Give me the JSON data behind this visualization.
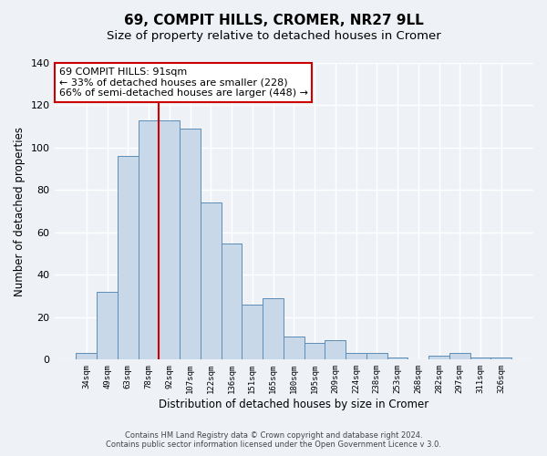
{
  "title": "69, COMPIT HILLS, CROMER, NR27 9LL",
  "subtitle": "Size of property relative to detached houses in Cromer",
  "xlabel": "Distribution of detached houses by size in Cromer",
  "ylabel": "Number of detached properties",
  "bar_labels": [
    "34sqm",
    "49sqm",
    "63sqm",
    "78sqm",
    "92sqm",
    "107sqm",
    "122sqm",
    "136sqm",
    "151sqm",
    "165sqm",
    "180sqm",
    "195sqm",
    "209sqm",
    "224sqm",
    "238sqm",
    "253sqm",
    "268sqm",
    "282sqm",
    "297sqm",
    "311sqm",
    "326sqm"
  ],
  "bar_values": [
    3,
    32,
    96,
    113,
    113,
    109,
    74,
    55,
    26,
    29,
    11,
    8,
    9,
    3,
    3,
    1,
    0,
    2,
    3,
    1,
    1
  ],
  "bar_color": "#c8d8e8",
  "bar_edge_color": "#5b8db8",
  "vline_pos": 3.5,
  "vline_color": "#cc0000",
  "ylim": [
    0,
    140
  ],
  "yticks": [
    0,
    20,
    40,
    60,
    80,
    100,
    120,
    140
  ],
  "annotation_title": "69 COMPIT HILLS: 91sqm",
  "annotation_line1": "← 33% of detached houses are smaller (228)",
  "annotation_line2": "66% of semi-detached houses are larger (448) →",
  "annotation_box_color": "#ffffff",
  "annotation_box_edge": "#cc0000",
  "footer1": "Contains HM Land Registry data © Crown copyright and database right 2024.",
  "footer2": "Contains public sector information licensed under the Open Government Licence v 3.0.",
  "background_color": "#eef2f7",
  "grid_color": "#ffffff",
  "title_fontsize": 11,
  "subtitle_fontsize": 9.5
}
